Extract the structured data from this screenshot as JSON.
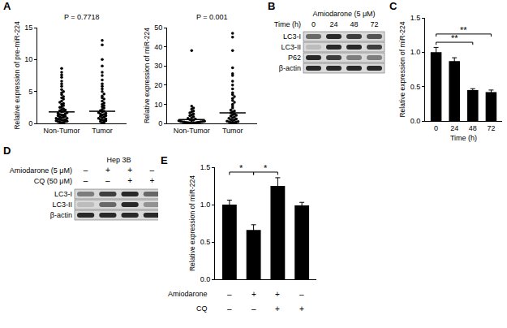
{
  "chart_data": [
    {
      "panel": "A",
      "type": "scatter",
      "annotation": "P = 0.7718",
      "y_label": "Relative expression of pre-miR-224",
      "categories": [
        "Non-Tumor",
        "Tumor"
      ],
      "points": [
        [
          0.1,
          0.15,
          0.2,
          0.3,
          0.3,
          0.35,
          0.4,
          0.5,
          0.5,
          0.6,
          0.6,
          0.7,
          0.8,
          0.8,
          0.9,
          1.0,
          1.0,
          1.1,
          1.2,
          1.3,
          1.3,
          1.4,
          1.5,
          1.6,
          1.7,
          1.8,
          1.9,
          2.0,
          2.1,
          2.2,
          2.3,
          2.5,
          2.6,
          2.8,
          3.0,
          3.1,
          3.3,
          3.5,
          3.8,
          4.0,
          4.2,
          4.5,
          4.8,
          5.0,
          5.3,
          5.8,
          6.2,
          6.6,
          7.2,
          7.6,
          8.0,
          8.6
        ],
        [
          0.1,
          0.2,
          0.3,
          0.4,
          0.5,
          0.5,
          0.6,
          0.7,
          0.8,
          0.9,
          1.0,
          1.1,
          1.2,
          1.3,
          1.4,
          1.5,
          1.6,
          1.7,
          1.8,
          1.9,
          2.0,
          2.2,
          2.4,
          2.6,
          2.8,
          3.0,
          3.2,
          3.5,
          3.8,
          4.0,
          4.3,
          4.6,
          5.0,
          5.4,
          5.8,
          6.2,
          6.8,
          7.5,
          8.0,
          9.0,
          10.0,
          12.3,
          13.0
        ]
      ],
      "center_values": [
        1.8,
        1.9
      ],
      "color": "#000000",
      "marker": "circle",
      "ylim": [
        0,
        15
      ],
      "yticks": [
        0,
        5,
        10,
        15
      ],
      "grid": false
    },
    {
      "type": "scatter",
      "annotation": "P = 0.001",
      "y_label": "Relative expression of miR-224",
      "categories": [
        "Non-Tumor",
        "Tumor"
      ],
      "points": [
        [
          0.1,
          0.2,
          0.3,
          0.3,
          0.4,
          0.5,
          0.5,
          0.6,
          0.7,
          0.8,
          0.9,
          1.0,
          1.1,
          1.2,
          1.4,
          1.5,
          1.7,
          2.0,
          2.3,
          2.6,
          3.0,
          3.5,
          4.0,
          4.5,
          5.0,
          5.5,
          6.0,
          6.5,
          7.5,
          8.0,
          9.0,
          38.0
        ],
        [
          0.2,
          0.4,
          0.5,
          0.7,
          0.9,
          1.0,
          1.2,
          1.5,
          1.8,
          2.0,
          2.3,
          2.6,
          3.0,
          3.4,
          3.8,
          4.2,
          4.6,
          5.0,
          5.5,
          6.0,
          6.5,
          7.0,
          8.0,
          9.0,
          10.0,
          11.0,
          12.0,
          13.0,
          14.0,
          15.0,
          16.0,
          18.0,
          20.0,
          22.0,
          25.0,
          26.0,
          29.0,
          38.0,
          45.0,
          47.0
        ]
      ],
      "center_values": [
        2.0,
        5.5
      ],
      "color": "#000000",
      "marker": "circle",
      "ylim": [
        0,
        50
      ],
      "yticks": [
        0,
        10,
        20,
        30,
        40,
        50
      ],
      "grid": false
    },
    {
      "panel": "B",
      "type": "blot",
      "header": "Amiodarone (5 μM)",
      "lane_label": "Time (h)",
      "lanes": [
        "0",
        "24",
        "48",
        "72"
      ],
      "rows": [
        {
          "name": "LC3-I",
          "values": [
            0.6,
            0.9,
            0.8,
            0.7
          ]
        },
        {
          "name": "LC3-II",
          "values": [
            0.2,
            0.9,
            0.9,
            0.8
          ]
        },
        {
          "name": "P62",
          "values": [
            0.9,
            0.8,
            0.5,
            0.5
          ]
        },
        {
          "name": "β-actin",
          "values": [
            0.9,
            0.9,
            0.9,
            0.9
          ]
        }
      ]
    },
    {
      "panel": "C",
      "type": "bar",
      "x_label": "Time (h)",
      "y_label": "Relative expression of miR-224",
      "categories": [
        "0",
        "24",
        "48",
        "72"
      ],
      "values": [
        1.0,
        0.87,
        0.45,
        0.42
      ],
      "errors": [
        0.07,
        0.05,
        0.02,
        0.03
      ],
      "color": "#000000",
      "ylim": [
        0,
        1.5
      ],
      "yticks": [
        {
          "value": 0,
          "label": "0.0"
        },
        {
          "value": 0.5,
          "label": "0.5"
        },
        {
          "value": 1,
          "label": "1.0"
        },
        {
          "value": 1.5,
          "label": "1.5"
        }
      ],
      "grid": false,
      "comparisons": [
        {
          "from": 0,
          "to": 2,
          "label": "**"
        },
        {
          "from": 0,
          "to": 3,
          "label": "**"
        }
      ]
    },
    {
      "panel": "D",
      "type": "blot",
      "header": "Hep 3B",
      "conditions": [
        {
          "name": "Amiodarone (5 μM)",
          "signs": [
            "–",
            "+",
            "+",
            "–"
          ]
        },
        {
          "name": "CQ (50 μM)",
          "signs": [
            "–",
            "–",
            "+",
            "+"
          ]
        }
      ],
      "rows": [
        {
          "name": "LC3-I",
          "values": [
            0.5,
            0.8,
            0.9,
            0.6
          ]
        },
        {
          "name": "LC3-II",
          "values": [
            0.2,
            0.6,
            0.9,
            0.4
          ]
        },
        {
          "name": "β-actin",
          "values": [
            0.9,
            0.9,
            0.9,
            0.9
          ]
        }
      ]
    },
    {
      "panel": "E",
      "type": "bar",
      "y_label": "Relative expression of miR-224",
      "categories": [
        null,
        null,
        null,
        null
      ],
      "values": [
        1.0,
        0.66,
        1.25,
        0.99
      ],
      "errors": [
        0.06,
        0.07,
        0.11,
        0.04
      ],
      "color": "#000000",
      "ylim": [
        0,
        1.5
      ],
      "yticks": [
        {
          "value": 0,
          "label": "0.0"
        },
        {
          "value": 0.5,
          "label": "0.5"
        },
        {
          "value": 1,
          "label": "1.0"
        },
        {
          "value": 1.5,
          "label": "1.5"
        }
      ],
      "grid": false,
      "tick_labels": "y",
      "conditions": [
        {
          "name": "Amiodarone",
          "signs": [
            "–",
            "+",
            "+",
            "–"
          ]
        },
        {
          "name": "CQ",
          "signs": [
            "–",
            "–",
            "+",
            "+"
          ]
        }
      ],
      "comparisons": [
        {
          "from": 0,
          "to": 1,
          "label": "*"
        },
        {
          "from": 1,
          "to": 2,
          "label": "*"
        }
      ]
    }
  ]
}
